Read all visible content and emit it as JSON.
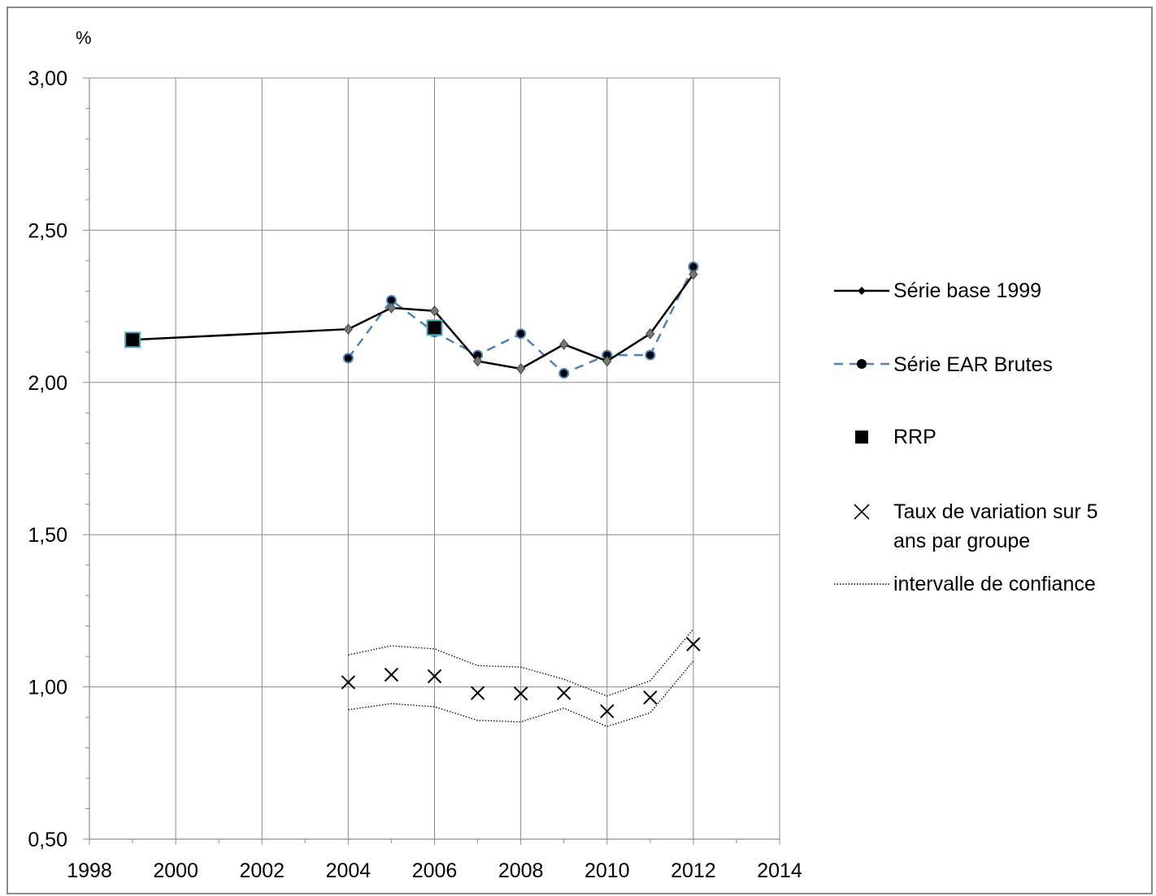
{
  "chart_data": {
    "type": "line",
    "unit_label": "%",
    "x_ticks": [
      "1998",
      "2000",
      "2002",
      "2004",
      "2006",
      "2008",
      "2010",
      "2012",
      "2014"
    ],
    "y_ticks": [
      "0,50",
      "1,00",
      "1,50",
      "2,00",
      "2,50",
      "3,00"
    ],
    "xlim": [
      1998,
      2014
    ],
    "ylim": [
      0.5,
      3.0
    ],
    "grid": true,
    "legend_position": "right",
    "series": [
      {
        "name": "Série base 1999",
        "style": "solid-line-diamond",
        "color": "#000000",
        "points": [
          [
            1999,
            2.14
          ],
          [
            2004,
            2.175
          ],
          [
            2005,
            2.245
          ],
          [
            2006,
            2.235
          ],
          [
            2007,
            2.07
          ],
          [
            2008,
            2.045
          ],
          [
            2009,
            2.125
          ],
          [
            2010,
            2.07
          ],
          [
            2011,
            2.16
          ],
          [
            2012,
            2.355
          ]
        ]
      },
      {
        "name": "Série EAR Brutes",
        "style": "dashed-line-circle",
        "color": "#4f81bd",
        "points": [
          [
            2004,
            2.08
          ],
          [
            2005,
            2.27
          ],
          [
            2006,
            2.165
          ],
          [
            2007,
            2.09
          ],
          [
            2008,
            2.16
          ],
          [
            2009,
            2.03
          ],
          [
            2010,
            2.09
          ],
          [
            2011,
            2.09
          ],
          [
            2012,
            2.38
          ]
        ]
      },
      {
        "name": "RRP",
        "style": "square-marker",
        "color": "#000000",
        "points": [
          [
            1999,
            2.14
          ],
          [
            2006,
            2.18
          ]
        ]
      },
      {
        "name_line1": "Taux de variation sur 5",
        "name_line2": "ans par groupe",
        "style": "x-marker",
        "color": "#000000",
        "points": [
          [
            2004,
            1.015
          ],
          [
            2005,
            1.04
          ],
          [
            2006,
            1.035
          ],
          [
            2007,
            0.98
          ],
          [
            2008,
            0.978
          ],
          [
            2009,
            0.98
          ],
          [
            2010,
            0.92
          ],
          [
            2011,
            0.965
          ],
          [
            2012,
            1.14
          ]
        ]
      },
      {
        "name": "intervalle de confiance",
        "style": "dotted-band",
        "color": "#000000",
        "upper": [
          [
            2004,
            1.105
          ],
          [
            2005,
            1.135
          ],
          [
            2006,
            1.125
          ],
          [
            2007,
            1.07
          ],
          [
            2008,
            1.065
          ],
          [
            2009,
            1.025
          ],
          [
            2010,
            0.97
          ],
          [
            2011,
            1.02
          ],
          [
            2012,
            1.19
          ]
        ],
        "lower": [
          [
            2004,
            0.925
          ],
          [
            2005,
            0.945
          ],
          [
            2006,
            0.935
          ],
          [
            2007,
            0.89
          ],
          [
            2008,
            0.885
          ],
          [
            2009,
            0.93
          ],
          [
            2010,
            0.87
          ],
          [
            2011,
            0.915
          ],
          [
            2012,
            1.085
          ]
        ]
      }
    ]
  }
}
